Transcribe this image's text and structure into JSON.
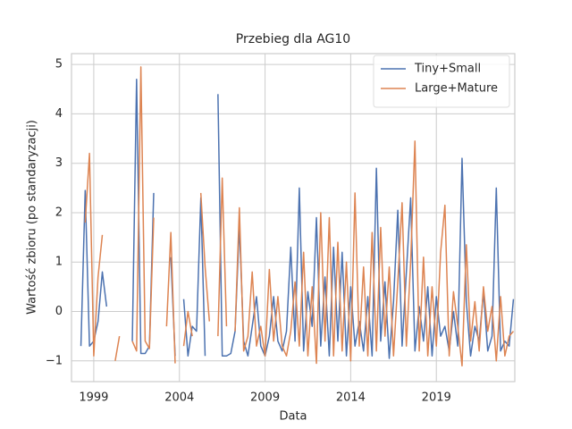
{
  "chart_data": {
    "type": "line",
    "title": "Przebieg dla AG10",
    "xlabel": "Data",
    "ylabel": "Wartość zbioru (po standaryzacji)",
    "x": [
      1998.25,
      1998.5,
      1998.75,
      1999,
      1999.25,
      1999.5,
      1999.75,
      2000,
      2000.25,
      2000.5,
      2000.75,
      2001,
      2001.25,
      2001.5,
      2001.75,
      2002,
      2002.25,
      2002.5,
      2002.75,
      2003,
      2003.25,
      2003.5,
      2003.75,
      2004,
      2004.25,
      2004.5,
      2004.75,
      2005,
      2005.25,
      2005.5,
      2005.75,
      2006,
      2006.25,
      2006.5,
      2006.75,
      2007,
      2007.25,
      2007.5,
      2007.75,
      2008,
      2008.25,
      2008.5,
      2008.75,
      2009,
      2009.25,
      2009.5,
      2009.75,
      2010,
      2010.25,
      2010.5,
      2010.75,
      2011,
      2011.25,
      2011.5,
      2011.75,
      2012,
      2012.25,
      2012.5,
      2012.75,
      2013,
      2013.25,
      2013.5,
      2013.75,
      2014,
      2014.25,
      2014.5,
      2014.75,
      2015,
      2015.25,
      2015.5,
      2015.75,
      2016,
      2016.25,
      2016.5,
      2016.75,
      2017,
      2017.25,
      2017.5,
      2017.75,
      2018,
      2018.25,
      2018.5,
      2018.75,
      2019,
      2019.25,
      2019.5,
      2019.75,
      2020,
      2020.25,
      2020.5,
      2020.75,
      2021,
      2021.25,
      2021.5,
      2021.75,
      2022,
      2022.25,
      2022.5,
      2022.75,
      2023,
      2023.25,
      2023.5
    ],
    "series": [
      {
        "name": "Tiny+Small",
        "color": "#4c72b0",
        "values": [
          -0.7,
          2.45,
          -0.7,
          -0.6,
          -0.2,
          0.8,
          0.1,
          null,
          0.45,
          null,
          null,
          null,
          -0.6,
          4.7,
          -0.85,
          -0.85,
          -0.7,
          2.4,
          null,
          null,
          null,
          1.1,
          -0.9,
          null,
          0.25,
          -0.9,
          -0.3,
          -0.4,
          2.3,
          -0.9,
          null,
          null,
          4.4,
          -0.9,
          -0.9,
          -0.85,
          -0.4,
          1.75,
          -0.6,
          -0.9,
          -0.3,
          0.3,
          -0.7,
          -0.9,
          -0.5,
          0.3,
          -0.6,
          -0.8,
          -0.4,
          1.3,
          -0.6,
          2.5,
          -0.8,
          0.4,
          -0.3,
          1.9,
          -0.7,
          0.7,
          -0.9,
          1.3,
          -0.6,
          1.2,
          -0.9,
          0.5,
          -0.7,
          -0.2,
          -0.8,
          0.3,
          -0.9,
          2.9,
          -0.6,
          0.6,
          -0.95,
          0.2,
          2.05,
          -0.7,
          0.8,
          2.3,
          -0.8,
          0.1,
          -0.6,
          0.5,
          -0.9,
          0.3,
          -0.5,
          -0.3,
          -0.8,
          0.0,
          -0.7,
          3.1,
          0.2,
          -0.9,
          -0.3,
          -0.6,
          0.4,
          -0.8,
          -0.5,
          2.5,
          -0.8,
          -0.6,
          -0.7,
          0.25
        ]
      },
      {
        "name": "Large+Mature",
        "color": "#dd8452",
        "values": [
          null,
          1.8,
          3.2,
          -0.9,
          0.7,
          1.55,
          null,
          null,
          -1.0,
          -0.5,
          null,
          null,
          -0.6,
          -0.8,
          4.95,
          -0.6,
          -0.75,
          1.9,
          null,
          null,
          -0.3,
          1.6,
          -1.05,
          null,
          -0.7,
          0.0,
          -0.5,
          null,
          2.4,
          0.9,
          -0.2,
          null,
          -0.5,
          2.7,
          -0.3,
          null,
          -0.4,
          2.1,
          -0.8,
          -0.5,
          0.8,
          -0.7,
          -0.3,
          -0.9,
          0.85,
          -0.6,
          0.3,
          -0.7,
          -0.9,
          -0.4,
          0.6,
          -0.7,
          1.2,
          -0.9,
          0.5,
          -1.05,
          2.0,
          -0.6,
          1.9,
          -0.9,
          1.4,
          -0.8,
          1.0,
          -1.0,
          2.4,
          -0.7,
          0.9,
          -0.9,
          1.6,
          -0.8,
          1.7,
          -0.5,
          0.9,
          -0.9,
          0.6,
          2.2,
          -0.7,
          1.0,
          3.45,
          -0.8,
          1.1,
          -0.9,
          0.5,
          -0.7,
          1.2,
          2.15,
          -0.9,
          0.4,
          -0.3,
          -1.1,
          1.35,
          -0.6,
          0.2,
          -0.8,
          0.5,
          -0.4,
          0.1,
          -1.0,
          0.3,
          -0.9,
          -0.5,
          -0.4
        ]
      }
    ],
    "xlim": [
      1997.7,
      2023.58
    ],
    "xticks": [
      1999,
      2004,
      2009,
      2014,
      2019
    ],
    "ylim": [
      -1.42,
      5.22
    ],
    "yticks": [
      {
        "value": -1,
        "label": "−1"
      },
      0,
      1,
      2,
      3,
      4,
      5
    ],
    "grid": true,
    "legend": "upper right"
  }
}
